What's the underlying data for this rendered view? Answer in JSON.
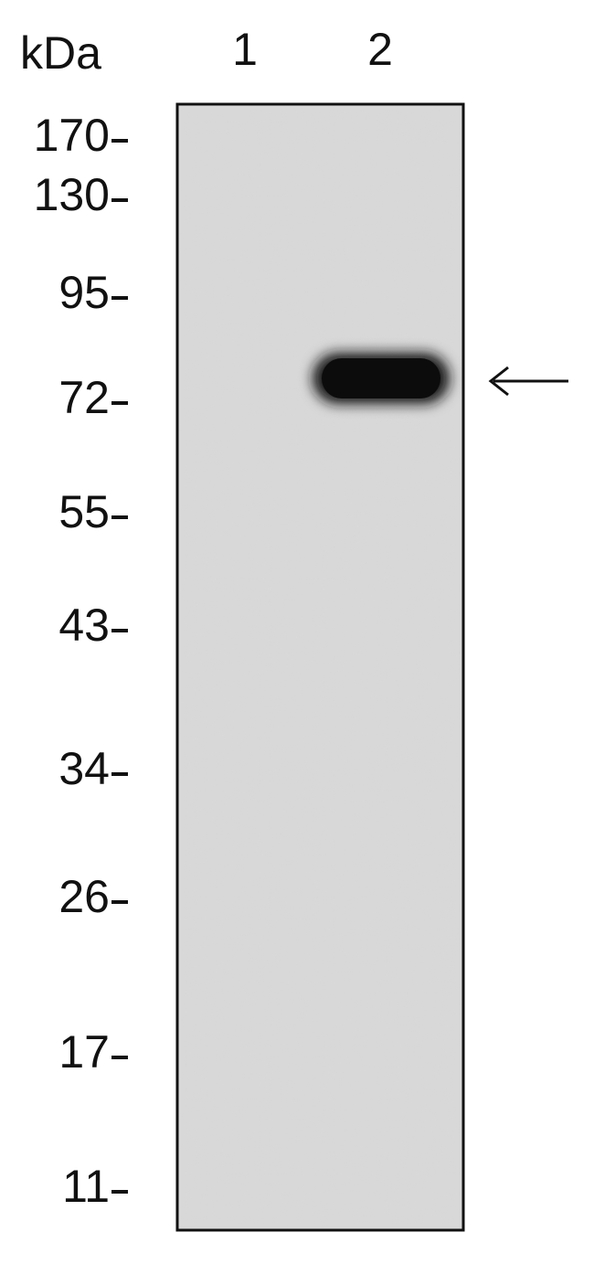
{
  "unit": "kDa",
  "lanes": [
    "1",
    "2"
  ],
  "markers": [
    "170",
    "130",
    "95",
    "72",
    "55",
    "43",
    "34",
    "26",
    "17",
    "11"
  ]
}
